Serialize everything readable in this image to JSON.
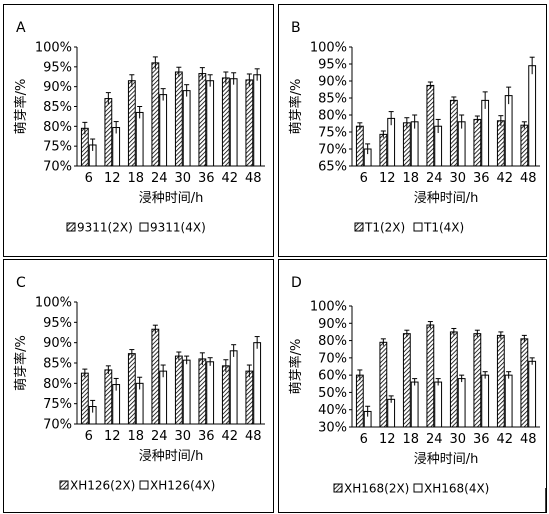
{
  "chart_data": [
    {
      "panel": "A",
      "type": "bar",
      "ylabel": "萌芽率/%",
      "xlabel": "浸种时间/h",
      "ylim": [
        0.7,
        1.0
      ],
      "yticks": [
        "70%",
        "75%",
        "80%",
        "85%",
        "90%",
        "95%",
        "100%"
      ],
      "categories": [
        "6",
        "12",
        "18",
        "24",
        "30",
        "36",
        "42",
        "48"
      ],
      "grid": false,
      "legend_position": "bottom",
      "series": [
        {
          "name": "9311(2X)",
          "pattern": "hatched",
          "values": [
            0.795,
            0.87,
            0.915,
            0.96,
            0.937,
            0.933,
            0.922,
            0.917
          ],
          "errors": [
            0.015,
            0.015,
            0.015,
            0.015,
            0.012,
            0.015,
            0.015,
            0.015
          ]
        },
        {
          "name": "9311(4X)",
          "pattern": "open",
          "values": [
            0.753,
            0.797,
            0.835,
            0.88,
            0.89,
            0.915,
            0.92,
            0.93
          ],
          "errors": [
            0.015,
            0.015,
            0.015,
            0.015,
            0.015,
            0.015,
            0.015,
            0.015
          ]
        }
      ]
    },
    {
      "panel": "B",
      "type": "bar",
      "ylabel": "萌芽率/%",
      "xlabel": "浸种时间/h",
      "ylim": [
        0.65,
        1.0
      ],
      "yticks": [
        "65%",
        "70%",
        "75%",
        "80%",
        "85%",
        "90%",
        "95%",
        "100%"
      ],
      "categories": [
        "6",
        "12",
        "18",
        "24",
        "30",
        "36",
        "42",
        "48"
      ],
      "grid": false,
      "legend_position": "bottom",
      "series": [
        {
          "name": "T1(2X)",
          "pattern": "hatched",
          "values": [
            0.767,
            0.743,
            0.777,
            0.887,
            0.843,
            0.787,
            0.783,
            0.77
          ],
          "errors": [
            0.01,
            0.01,
            0.015,
            0.01,
            0.01,
            0.01,
            0.015,
            0.01
          ]
        },
        {
          "name": "T1(4X)",
          "pattern": "open",
          "values": [
            0.7,
            0.79,
            0.78,
            0.767,
            0.78,
            0.843,
            0.857,
            0.945
          ],
          "errors": [
            0.015,
            0.02,
            0.02,
            0.02,
            0.02,
            0.025,
            0.025,
            0.025
          ]
        }
      ]
    },
    {
      "panel": "C",
      "type": "bar",
      "ylabel": "萌芽率/%",
      "xlabel": "浸种时间/h",
      "ylim": [
        0.7,
        1.0
      ],
      "yticks": [
        "70%",
        "75%",
        "80%",
        "85%",
        "90%",
        "95%",
        "100%"
      ],
      "categories": [
        "6",
        "12",
        "18",
        "24",
        "30",
        "36",
        "42",
        "48"
      ],
      "grid": false,
      "legend_position": "bottom",
      "series": [
        {
          "name": "XH126(2X)",
          "pattern": "hatched",
          "values": [
            0.825,
            0.833,
            0.873,
            0.933,
            0.867,
            0.86,
            0.843,
            0.83
          ],
          "errors": [
            0.01,
            0.01,
            0.01,
            0.01,
            0.01,
            0.015,
            0.015,
            0.015
          ]
        },
        {
          "name": "XH126(4X)",
          "pattern": "open",
          "values": [
            0.743,
            0.797,
            0.8,
            0.83,
            0.857,
            0.853,
            0.88,
            0.9
          ],
          "errors": [
            0.015,
            0.015,
            0.015,
            0.015,
            0.01,
            0.01,
            0.015,
            0.015
          ]
        }
      ]
    },
    {
      "panel": "D",
      "type": "bar",
      "ylabel": "萌芽率/%",
      "xlabel": "浸种时间/h",
      "ylim": [
        0.3,
        1.0
      ],
      "yticks": [
        "30%",
        "40%",
        "50%",
        "60%",
        "70%",
        "80%",
        "90%",
        "100%"
      ],
      "categories": [
        "6",
        "12",
        "18",
        "24",
        "30",
        "36",
        "42",
        "48"
      ],
      "grid": false,
      "legend_position": "bottom",
      "series": [
        {
          "name": "XH168(2X)",
          "pattern": "hatched",
          "values": [
            0.6,
            0.79,
            0.84,
            0.89,
            0.85,
            0.84,
            0.83,
            0.81
          ],
          "errors": [
            0.03,
            0.02,
            0.02,
            0.02,
            0.02,
            0.02,
            0.02,
            0.02
          ]
        },
        {
          "name": "XH168(4X)",
          "pattern": "open",
          "values": [
            0.39,
            0.46,
            0.56,
            0.56,
            0.58,
            0.6,
            0.6,
            0.68
          ],
          "errors": [
            0.03,
            0.02,
            0.02,
            0.02,
            0.02,
            0.02,
            0.02,
            0.02
          ]
        }
      ]
    }
  ]
}
